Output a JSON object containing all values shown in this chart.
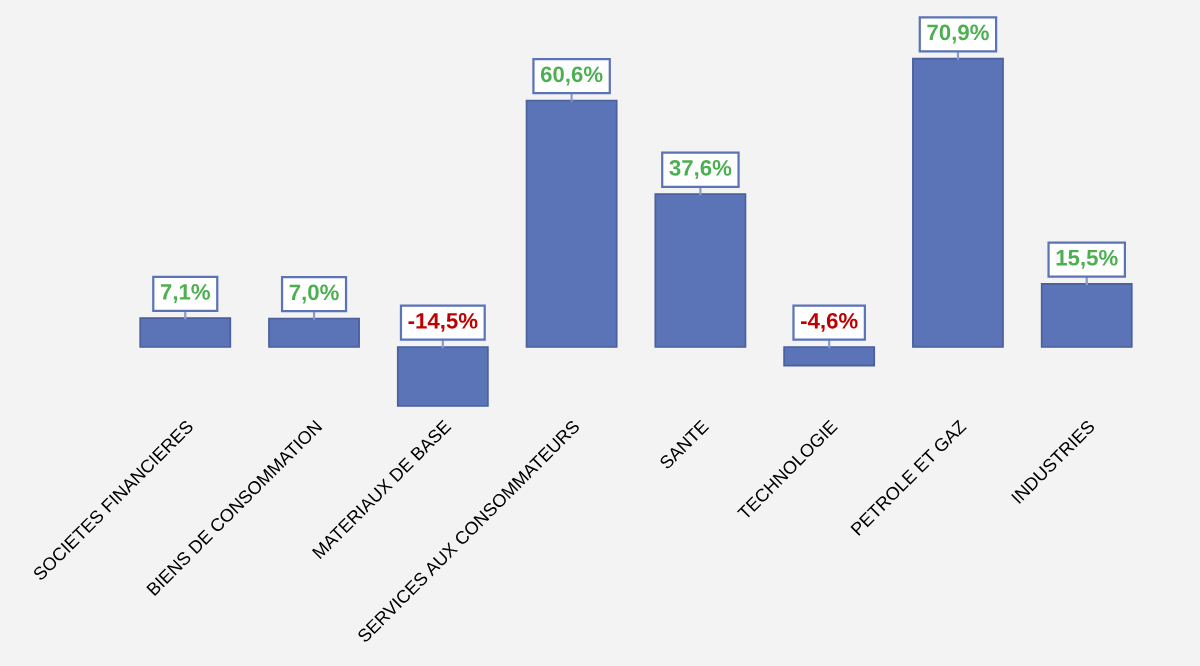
{
  "chart_data": {
    "type": "bar",
    "categories": [
      "SOCIETES FINANCIERES",
      "BIENS DE CONSOMMATION",
      "MATERIAUX DE BASE",
      "SERVICES AUX CONSOMMATEURS",
      "SANTE",
      "TECHNOLOGIE",
      "PETROLE ET GAZ",
      "INDUSTRIES"
    ],
    "values": [
      7.1,
      7.0,
      -14.5,
      60.6,
      37.6,
      -4.6,
      70.9,
      15.5
    ],
    "value_labels": [
      "7,1%",
      "7,0%",
      "-14,5%",
      "60,6%",
      "37,6%",
      "-4,6%",
      "70,9%",
      "15,5%"
    ],
    "color": "#5b73b7",
    "grid": false,
    "legend": false
  }
}
